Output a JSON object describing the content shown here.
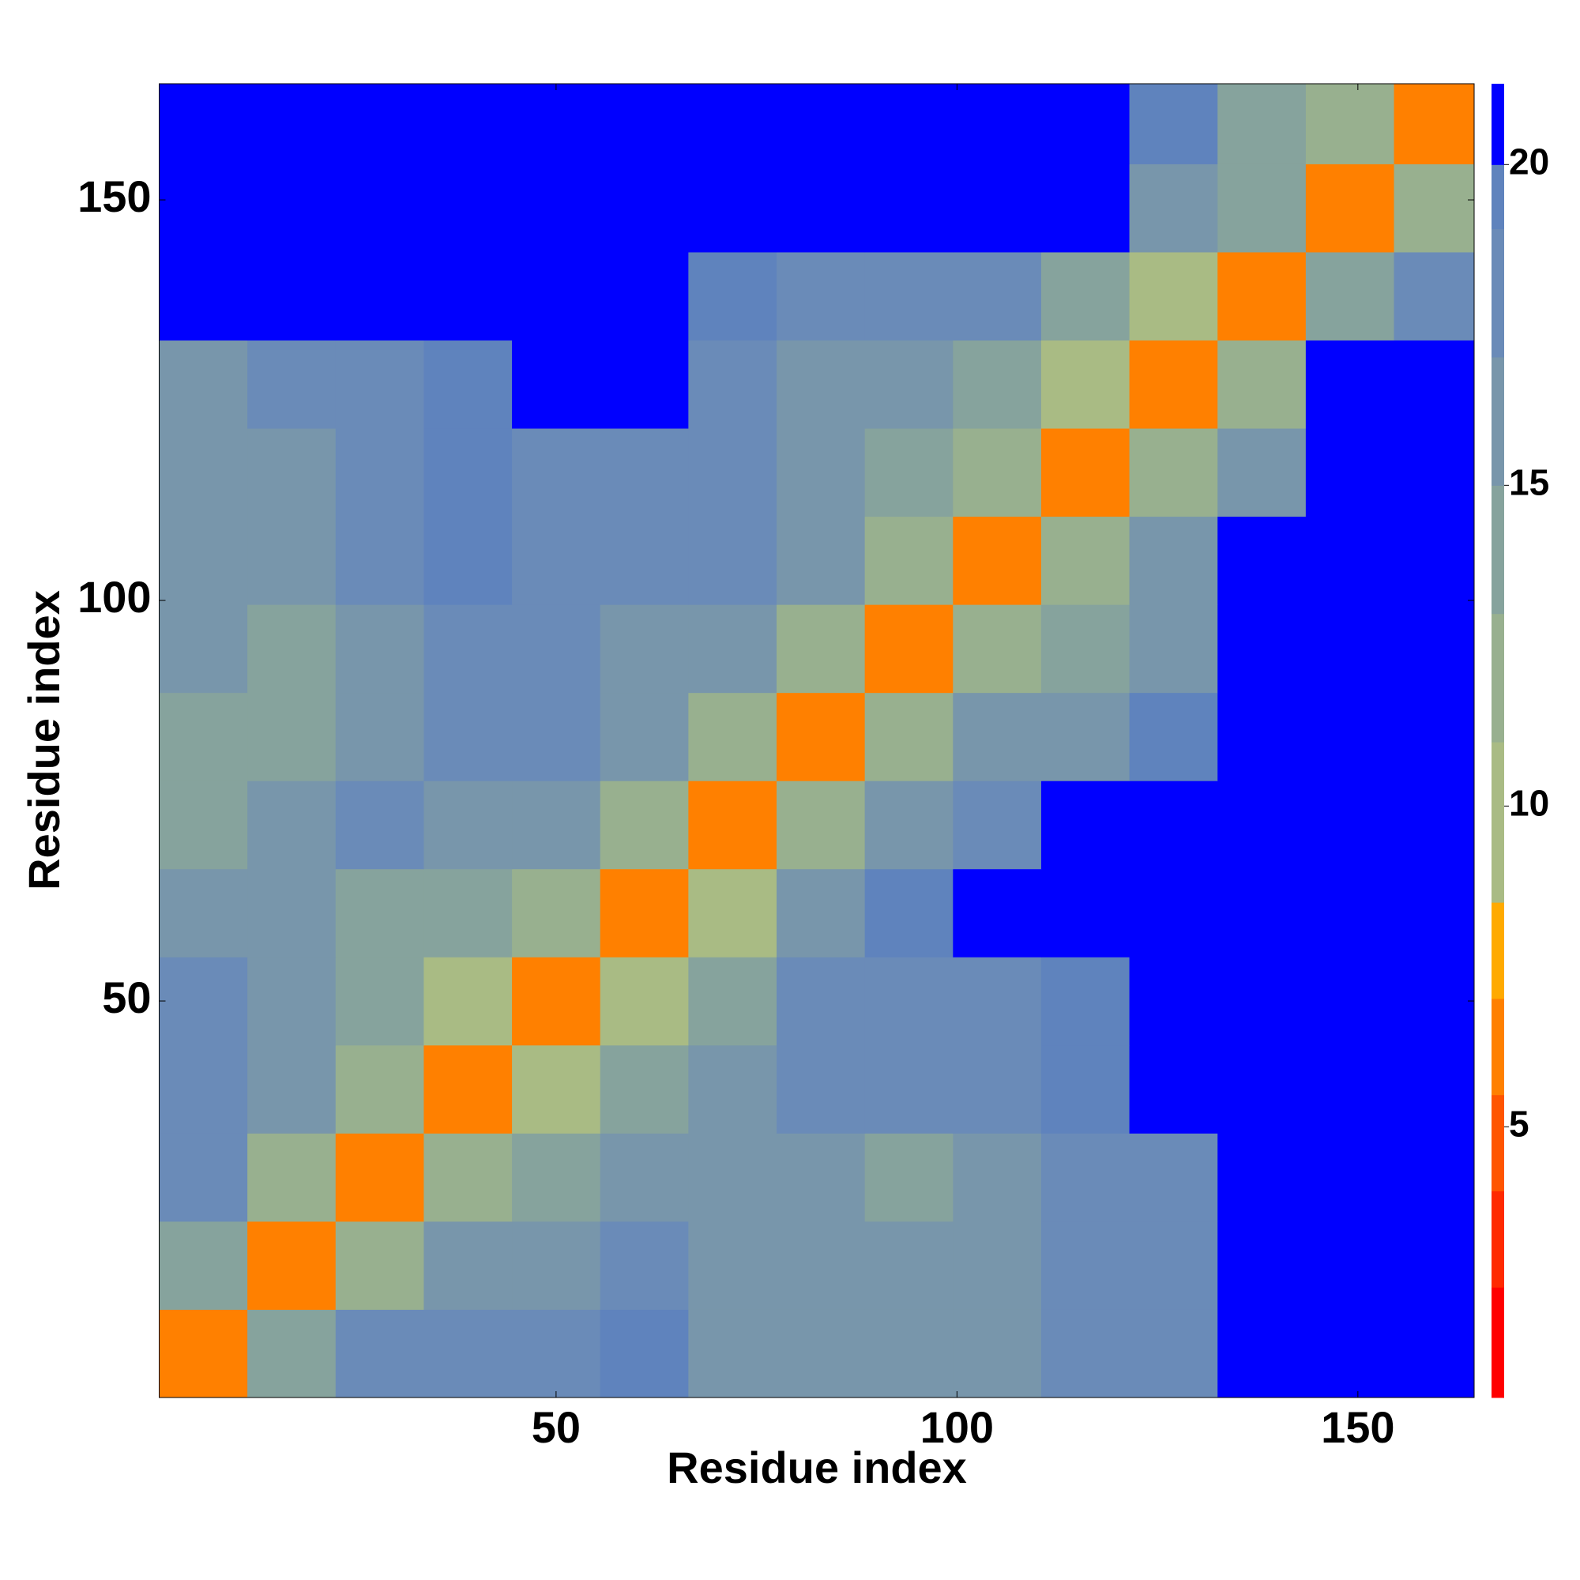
{
  "chart_data": {
    "type": "heatmap",
    "xlabel": "Residue index",
    "ylabel": "Residue index",
    "x_edges": [
      0.5,
      11.5,
      22.5,
      33.5,
      44.5,
      55.5,
      66.5,
      77.5,
      88.5,
      99.5,
      110.5,
      121.5,
      132.5,
      143.5,
      154.5,
      164.5
    ],
    "y_edges": [
      0.5,
      11.5,
      22.5,
      33.5,
      44.5,
      55.5,
      66.5,
      77.5,
      88.5,
      99.5,
      110.5,
      121.5,
      132.5,
      143.5,
      154.5,
      164.5
    ],
    "values": [
      [
        6,
        14,
        18,
        19,
        18,
        20,
        16,
        16,
        17,
        17,
        18,
        19,
        21,
        21,
        21
      ],
      [
        14,
        6,
        13,
        17,
        16,
        18,
        16,
        17,
        16,
        17,
        18,
        19,
        21,
        21,
        21
      ],
      [
        18,
        13,
        6,
        12,
        15,
        16,
        16,
        17,
        15,
        17,
        18,
        19,
        21,
        21,
        21
      ],
      [
        19,
        17,
        12,
        6,
        11,
        14,
        16,
        18,
        18,
        19,
        20,
        21,
        21,
        21,
        21
      ],
      [
        18,
        17,
        14,
        11,
        6,
        11,
        15,
        18,
        19,
        19,
        20,
        21,
        21,
        21,
        21
      ],
      [
        17,
        16,
        15,
        15,
        12,
        6,
        11,
        17,
        20,
        21,
        21,
        21,
        21,
        21,
        21
      ],
      [
        15,
        16,
        18,
        17,
        16,
        12,
        6,
        12,
        17,
        19,
        21,
        21,
        21,
        21,
        21
      ],
      [
        15,
        15,
        16,
        18,
        19,
        17,
        12,
        6,
        12,
        16,
        17,
        20,
        21,
        21,
        21
      ],
      [
        16,
        15,
        16,
        18,
        19,
        17,
        17,
        12,
        6,
        12,
        15,
        17,
        21,
        21,
        21
      ],
      [
        17,
        16,
        18,
        20,
        19,
        19,
        18,
        16,
        12,
        6,
        12,
        16,
        21,
        21,
        21
      ],
      [
        16,
        17,
        19,
        20,
        19,
        19,
        18,
        16,
        15,
        12,
        6,
        12,
        17,
        21,
        21
      ],
      [
        17,
        18,
        19,
        20,
        21,
        21,
        19,
        16,
        17,
        15,
        11,
        6,
        12,
        21,
        21
      ],
      [
        21,
        21,
        21,
        21,
        21,
        21,
        20,
        18,
        19,
        18,
        14,
        11,
        6,
        15,
        19
      ],
      [
        21,
        21,
        21,
        21,
        21,
        21,
        21,
        21,
        21,
        21,
        21,
        17,
        15,
        6,
        13
      ],
      [
        21,
        21,
        21,
        21,
        21,
        21,
        21,
        21,
        21,
        21,
        21,
        20,
        15,
        13,
        6
      ]
    ],
    "xlim": [
      0.5,
      164.5
    ],
    "ylim": [
      0.5,
      164.5
    ],
    "xticks": [
      50,
      100,
      150
    ],
    "yticks": [
      50,
      100,
      150
    ],
    "colorbar": {
      "levels": [
        0.78,
        2.5,
        4,
        5.5,
        7,
        8.5,
        11,
        13,
        15,
        17,
        19,
        20,
        21.26
      ],
      "colors": [
        "#ff0000",
        "#ff2a00",
        "#ff5500",
        "#ff8000",
        "#ffaa00",
        "#a9bb84",
        "#98b08f",
        "#86a39d",
        "#7896ab",
        "#6a8bb8",
        "#5f83bd",
        "#0000ff"
      ],
      "ticks": [
        5,
        10,
        15,
        20
      ]
    }
  }
}
